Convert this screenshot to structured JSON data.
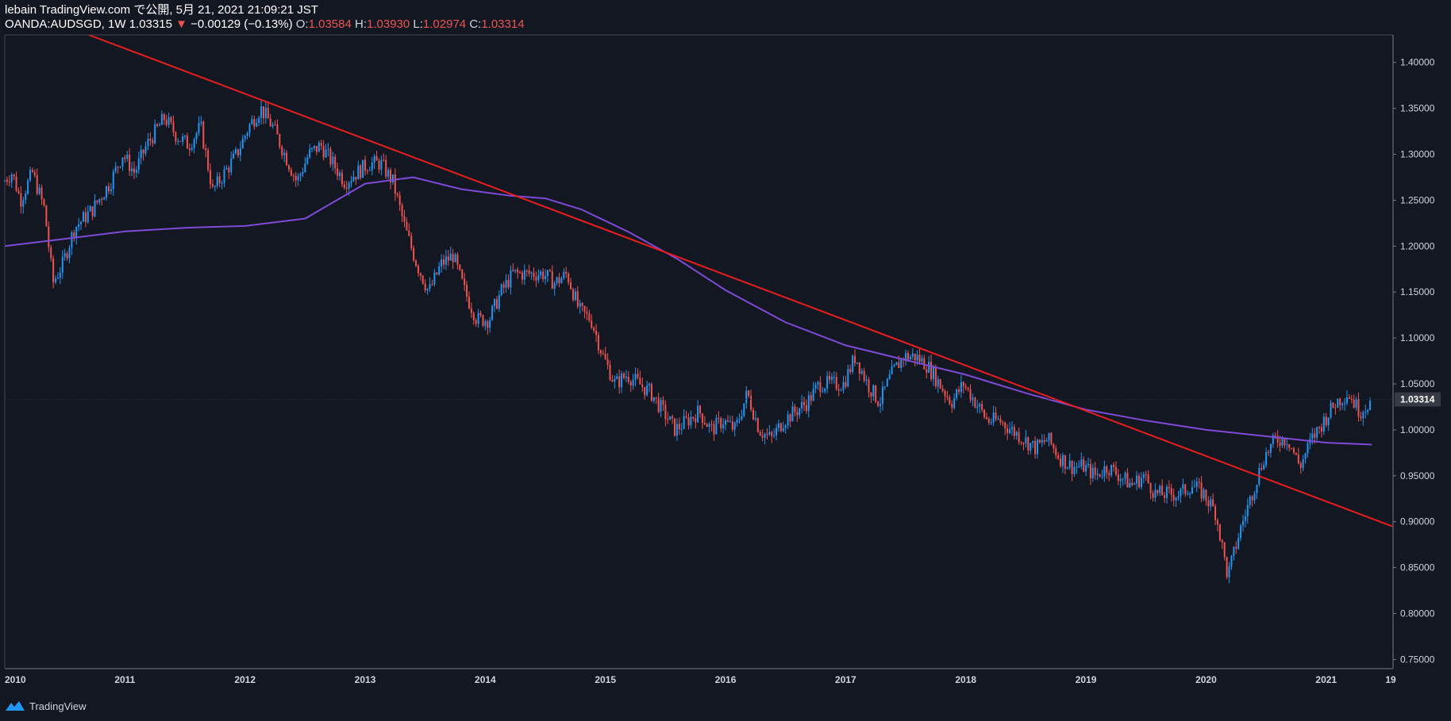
{
  "header": {
    "line1": "lebain TradingView.com で公開, 5月 21, 2021 21:09:21 JST",
    "symbol": "OANDA:AUDSGD, 1W",
    "last": "1.03315",
    "change": "−0.00129 (−0.13%)",
    "o_label": "O:",
    "o_value": "1.03584",
    "h_label": "H:",
    "h_value": "1.03930",
    "l_label": "L:",
    "l_value": "1.02974",
    "c_label": "C:",
    "c_value": "1.03314"
  },
  "footer": {
    "brand": "TradingView"
  },
  "colors": {
    "background": "#131722",
    "up": "#2196f3",
    "down": "#ef5350",
    "trendline": "#e81e1e",
    "moving_average": "#7e4ad8",
    "axis_text": "#d1d4dc",
    "badge_bg": "#363a45"
  },
  "chart_data": {
    "type": "candlestick",
    "timeframe": "1W",
    "x_ticks": [
      "2010",
      "2011",
      "2012",
      "2013",
      "2014",
      "2015",
      "2016",
      "2017",
      "2018",
      "2019",
      "2020",
      "2021",
      "19"
    ],
    "y_ticks": [
      "0.75000",
      "0.80000",
      "0.85000",
      "0.90000",
      "0.95000",
      "1.00000",
      "1.05000",
      "1.10000",
      "1.15000",
      "1.20000",
      "1.25000",
      "1.30000",
      "1.35000",
      "1.40000"
    ],
    "ylim": [
      0.74,
      1.43
    ],
    "xlim": [
      2010.0,
      2021.55
    ],
    "last_price_label": "1.03314",
    "last_price": 1.03314,
    "price_path": [
      [
        2010.0,
        1.27
      ],
      [
        2010.08,
        1.28
      ],
      [
        2010.15,
        1.25
      ],
      [
        2010.25,
        1.28
      ],
      [
        2010.35,
        1.24
      ],
      [
        2010.42,
        1.16
      ],
      [
        2010.5,
        1.18
      ],
      [
        2010.6,
        1.22
      ],
      [
        2010.75,
        1.24
      ],
      [
        2010.9,
        1.27
      ],
      [
        2011.0,
        1.3
      ],
      [
        2011.1,
        1.28
      ],
      [
        2011.2,
        1.31
      ],
      [
        2011.35,
        1.34
      ],
      [
        2011.45,
        1.32
      ],
      [
        2011.55,
        1.31
      ],
      [
        2011.65,
        1.33
      ],
      [
        2011.75,
        1.26
      ],
      [
        2011.85,
        1.28
      ],
      [
        2011.95,
        1.3
      ],
      [
        2012.05,
        1.33
      ],
      [
        2012.15,
        1.35
      ],
      [
        2012.25,
        1.33
      ],
      [
        2012.35,
        1.3
      ],
      [
        2012.45,
        1.27
      ],
      [
        2012.55,
        1.3
      ],
      [
        2012.65,
        1.31
      ],
      [
        2012.75,
        1.29
      ],
      [
        2012.85,
        1.27
      ],
      [
        2012.95,
        1.28
      ],
      [
        2013.05,
        1.29
      ],
      [
        2013.15,
        1.29
      ],
      [
        2013.25,
        1.27
      ],
      [
        2013.35,
        1.22
      ],
      [
        2013.45,
        1.18
      ],
      [
        2013.55,
        1.15
      ],
      [
        2013.65,
        1.18
      ],
      [
        2013.75,
        1.19
      ],
      [
        2013.85,
        1.15
      ],
      [
        2013.95,
        1.12
      ],
      [
        2014.05,
        1.12
      ],
      [
        2014.15,
        1.15
      ],
      [
        2014.25,
        1.17
      ],
      [
        2014.4,
        1.17
      ],
      [
        2014.5,
        1.17
      ],
      [
        2014.6,
        1.16
      ],
      [
        2014.7,
        1.17
      ],
      [
        2014.8,
        1.13
      ],
      [
        2014.9,
        1.12
      ],
      [
        2015.0,
        1.08
      ],
      [
        2015.1,
        1.05
      ],
      [
        2015.2,
        1.06
      ],
      [
        2015.3,
        1.05
      ],
      [
        2015.4,
        1.04
      ],
      [
        2015.5,
        1.02
      ],
      [
        2015.6,
        1.0
      ],
      [
        2015.7,
        1.01
      ],
      [
        2015.8,
        1.02
      ],
      [
        2015.9,
        1.0
      ],
      [
        2016.0,
        1.01
      ],
      [
        2016.1,
        1.0
      ],
      [
        2016.2,
        1.04
      ],
      [
        2016.3,
        1.0
      ],
      [
        2016.4,
        0.99
      ],
      [
        2016.5,
        1.01
      ],
      [
        2016.6,
        1.02
      ],
      [
        2016.7,
        1.03
      ],
      [
        2016.8,
        1.05
      ],
      [
        2016.9,
        1.05
      ],
      [
        2017.0,
        1.05
      ],
      [
        2017.1,
        1.08
      ],
      [
        2017.2,
        1.05
      ],
      [
        2017.3,
        1.03
      ],
      [
        2017.4,
        1.06
      ],
      [
        2017.5,
        1.08
      ],
      [
        2017.6,
        1.08
      ],
      [
        2017.7,
        1.07
      ],
      [
        2017.8,
        1.05
      ],
      [
        2017.9,
        1.03
      ],
      [
        2018.0,
        1.05
      ],
      [
        2018.1,
        1.03
      ],
      [
        2018.2,
        1.01
      ],
      [
        2018.3,
        1.01
      ],
      [
        2018.4,
        1.0
      ],
      [
        2018.5,
        0.99
      ],
      [
        2018.6,
        0.98
      ],
      [
        2018.7,
        0.99
      ],
      [
        2018.8,
        0.97
      ],
      [
        2018.9,
        0.96
      ],
      [
        2019.0,
        0.96
      ],
      [
        2019.1,
        0.95
      ],
      [
        2019.2,
        0.96
      ],
      [
        2019.3,
        0.95
      ],
      [
        2019.4,
        0.94
      ],
      [
        2019.5,
        0.95
      ],
      [
        2019.6,
        0.93
      ],
      [
        2019.7,
        0.93
      ],
      [
        2019.8,
        0.93
      ],
      [
        2019.9,
        0.94
      ],
      [
        2020.0,
        0.93
      ],
      [
        2020.1,
        0.91
      ],
      [
        2020.2,
        0.84
      ],
      [
        2020.3,
        0.89
      ],
      [
        2020.4,
        0.93
      ],
      [
        2020.5,
        0.97
      ],
      [
        2020.6,
        0.99
      ],
      [
        2020.7,
        0.99
      ],
      [
        2020.8,
        0.96
      ],
      [
        2020.9,
        0.99
      ],
      [
        2021.0,
        1.01
      ],
      [
        2021.1,
        1.03
      ],
      [
        2021.2,
        1.04
      ],
      [
        2021.3,
        1.02
      ],
      [
        2021.38,
        1.03
      ]
    ],
    "trendline": [
      [
        2010.7,
        1.43
      ],
      [
        2021.55,
        0.895
      ]
    ],
    "moving_average": [
      [
        2010.0,
        1.2
      ],
      [
        2010.5,
        1.208
      ],
      [
        2011.0,
        1.216
      ],
      [
        2011.5,
        1.22
      ],
      [
        2012.0,
        1.222
      ],
      [
        2012.5,
        1.23
      ],
      [
        2013.0,
        1.268
      ],
      [
        2013.4,
        1.275
      ],
      [
        2013.8,
        1.262
      ],
      [
        2014.2,
        1.255
      ],
      [
        2014.5,
        1.252
      ],
      [
        2014.8,
        1.24
      ],
      [
        2015.2,
        1.215
      ],
      [
        2015.6,
        1.186
      ],
      [
        2016.0,
        1.152
      ],
      [
        2016.5,
        1.117
      ],
      [
        2017.0,
        1.092
      ],
      [
        2017.5,
        1.076
      ],
      [
        2018.0,
        1.06
      ],
      [
        2018.5,
        1.04
      ],
      [
        2019.0,
        1.022
      ],
      [
        2019.5,
        1.01
      ],
      [
        2020.0,
        1.0
      ],
      [
        2020.5,
        0.993
      ],
      [
        2021.0,
        0.986
      ],
      [
        2021.38,
        0.984
      ]
    ]
  }
}
